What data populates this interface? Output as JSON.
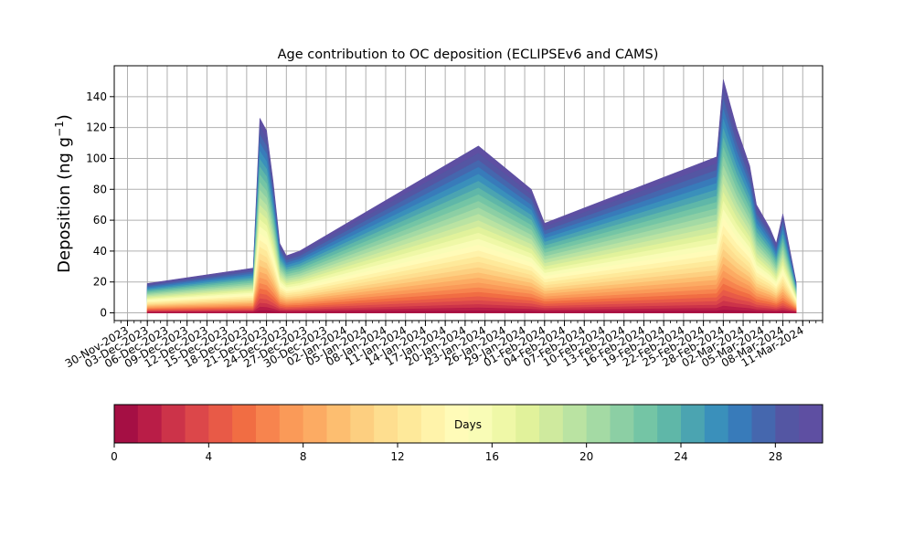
{
  "chart_data": {
    "type": "area",
    "title": "Age contribution to OC deposition (ECLIPSEv6 and CAMS)",
    "ylabel": "Deposition (ng g⁻¹)",
    "ylabel_main": "Deposition (ng g",
    "ylabel_sup": "−1",
    "ylabel_close": ")",
    "xlim": [
      "2023-11-28",
      "2024-03-14"
    ],
    "ylim": [
      -5,
      160
    ],
    "grid": true,
    "x_ticks": [
      "2023-11-30",
      "2023-12-03",
      "2023-12-06",
      "2023-12-09",
      "2023-12-12",
      "2023-12-15",
      "2023-12-18",
      "2023-12-21",
      "2023-12-24",
      "2023-12-27",
      "2023-12-30",
      "2024-01-02",
      "2024-01-05",
      "2024-01-08",
      "2024-01-11",
      "2024-01-14",
      "2024-01-17",
      "2024-01-20",
      "2024-01-23",
      "2024-01-26",
      "2024-01-29",
      "2024-02-01",
      "2024-02-04",
      "2024-02-07",
      "2024-02-10",
      "2024-02-13",
      "2024-02-16",
      "2024-02-19",
      "2024-02-22",
      "2024-02-25",
      "2024-02-28",
      "2024-03-02",
      "2024-03-05",
      "2024-03-08",
      "2024-03-11"
    ],
    "x_tick_labels": [
      "30-Nov-2023",
      "03-Dec-2023",
      "06-Dec-2023",
      "09-Dec-2023",
      "12-Dec-2023",
      "15-Dec-2023",
      "18-Dec-2023",
      "21-Dec-2023",
      "24-Dec-2023",
      "27-Dec-2023",
      "30-Dec-2023",
      "02-Jan-2024",
      "05-Jan-2024",
      "08-Jan-2024",
      "11-Jan-2024",
      "14-Jan-2024",
      "17-Jan-2024",
      "20-Jan-2024",
      "23-Jan-2024",
      "26-Jan-2024",
      "29-Jan-2024",
      "01-Feb-2024",
      "04-Feb-2024",
      "07-Feb-2024",
      "10-Feb-2024",
      "13-Feb-2024",
      "16-Feb-2024",
      "19-Feb-2024",
      "22-Feb-2024",
      "25-Feb-2024",
      "28-Feb-2024",
      "02-Mar-2024",
      "05-Mar-2024",
      "08-Mar-2024",
      "11-Mar-2024"
    ],
    "y_ticks": [
      0,
      20,
      40,
      60,
      80,
      100,
      120,
      140
    ],
    "total_deposition": {
      "x": [
        "2023-12-03",
        "2023-12-19",
        "2023-12-20",
        "2023-12-21",
        "2023-12-22",
        "2023-12-23",
        "2023-12-24",
        "2023-12-26",
        "2024-01-22",
        "2024-01-30",
        "2024-02-01",
        "2024-02-27",
        "2024-02-28",
        "2024-03-01",
        "2024-03-03",
        "2024-03-04",
        "2024-03-06",
        "2024-03-07",
        "2024-03-08",
        "2024-03-10"
      ],
      "values": [
        19,
        29,
        126,
        118,
        85,
        45,
        37,
        40,
        108,
        80,
        58,
        101,
        151,
        120,
        95,
        70,
        55,
        45,
        64,
        20
      ]
    },
    "colorbar": {
      "label": "Days",
      "min": 0,
      "max": 30,
      "bins": 30,
      "ticks": [
        0,
        4,
        8,
        12,
        16,
        20,
        24,
        28
      ],
      "colors": [
        "#a50f44",
        "#b91d47",
        "#cc3349",
        "#dc474a",
        "#e85a47",
        "#f16d43",
        "#f7844e",
        "#fa9a58",
        "#fcab63",
        "#fdbe70",
        "#fdcf80",
        "#fede8f",
        "#fee99a",
        "#fff3aa",
        "#fffbb8",
        "#f9fcb6",
        "#eff8a7",
        "#e1f29b",
        "#cfea9e",
        "#bae3a2",
        "#a4daa4",
        "#8ccfa4",
        "#74c5a5",
        "#5fb7a8",
        "#4ba4b1",
        "#3a90bb",
        "#387bba",
        "#4567ae",
        "#5456a3",
        "#5e4fa2"
      ]
    }
  }
}
